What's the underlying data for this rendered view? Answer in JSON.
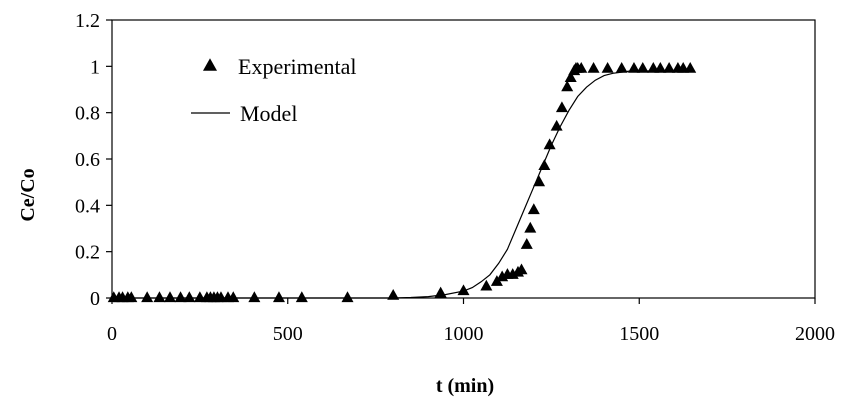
{
  "chart_data": {
    "type": "scatter",
    "xlabel": "t (min)",
    "ylabel": "Ce/Co",
    "xlim": [
      0,
      2000
    ],
    "ylim": [
      0,
      1.2
    ],
    "x_ticks": [
      "0",
      "500",
      "1000",
      "1500",
      "2000"
    ],
    "y_ticks": [
      "0",
      "0.2",
      "0.4",
      "0.6",
      "0.8",
      "1",
      "1.2"
    ],
    "grid": false,
    "legend_position": "top-left",
    "series": [
      {
        "name": "Experimental",
        "kind": "points",
        "marker": "triangle",
        "color": "#000000",
        "x": [
          5,
          20,
          30,
          45,
          55,
          100,
          135,
          165,
          195,
          220,
          250,
          270,
          280,
          290,
          300,
          310,
          330,
          345,
          405,
          475,
          540,
          670,
          800,
          935,
          1000,
          1065,
          1095,
          1110,
          1125,
          1140,
          1155,
          1165,
          1180,
          1190,
          1200,
          1215,
          1230,
          1245,
          1265,
          1280,
          1295,
          1305,
          1315,
          1320,
          1325,
          1335,
          1370,
          1410,
          1450,
          1485,
          1510,
          1540,
          1560,
          1585,
          1610,
          1625,
          1645
        ],
        "y": [
          0,
          0,
          0,
          0,
          0,
          0,
          0,
          0,
          0,
          0,
          0,
          0,
          0,
          0,
          0,
          0,
          0,
          0,
          0,
          0,
          0,
          0,
          0.01,
          0.02,
          0.03,
          0.05,
          0.07,
          0.09,
          0.1,
          0.1,
          0.11,
          0.12,
          0.23,
          0.3,
          0.38,
          0.5,
          0.57,
          0.66,
          0.74,
          0.82,
          0.91,
          0.95,
          0.98,
          0.99,
          0.99,
          0.99,
          0.99,
          0.99,
          0.99,
          0.99,
          0.99,
          0.99,
          0.99,
          0.99,
          0.99,
          0.99,
          0.99
        ]
      },
      {
        "name": "Model",
        "kind": "line",
        "color": "#000000",
        "x": [
          0,
          100,
          200,
          300,
          400,
          500,
          600,
          700,
          800,
          850,
          900,
          950,
          1000,
          1025,
          1050,
          1075,
          1100,
          1125,
          1150,
          1175,
          1200,
          1225,
          1250,
          1275,
          1300,
          1325,
          1350,
          1375,
          1400,
          1425,
          1450,
          1475,
          1500,
          1550,
          1600,
          1640
        ],
        "y": [
          0,
          0,
          0,
          0,
          0,
          0,
          0,
          0,
          0,
          0.002,
          0.006,
          0.015,
          0.03,
          0.045,
          0.07,
          0.1,
          0.15,
          0.21,
          0.3,
          0.39,
          0.48,
          0.57,
          0.66,
          0.74,
          0.81,
          0.87,
          0.91,
          0.94,
          0.96,
          0.97,
          0.975,
          0.98,
          0.98,
          0.98,
          0.98,
          0.98
        ]
      }
    ]
  }
}
